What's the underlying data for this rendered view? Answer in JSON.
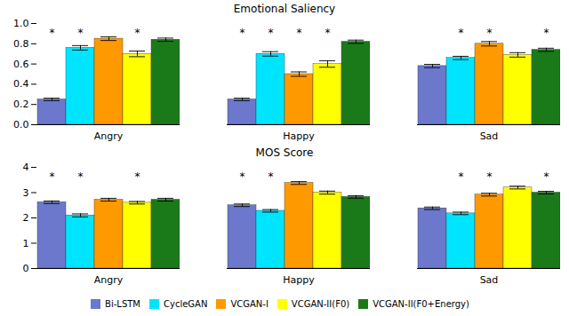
{
  "chart_data": [
    {
      "type": "bar",
      "title": "Emotional Saliency",
      "categories": [
        "Angry",
        "Happy",
        "Sad"
      ],
      "series": [
        {
          "name": "Bi-LSTM",
          "color": "#6B78CC",
          "values": [
            0.25,
            0.25,
            0.58
          ],
          "errors": [
            0.012,
            0.012,
            0.016
          ]
        },
        {
          "name": "CycleGAN",
          "color": "#00E5FF",
          "values": [
            0.76,
            0.7,
            0.66
          ],
          "errors": [
            0.022,
            0.022,
            0.016
          ]
        },
        {
          "name": "VCGAN-I",
          "color": "#FF9900",
          "values": [
            0.85,
            0.5,
            0.8
          ],
          "errors": [
            0.018,
            0.022,
            0.022
          ]
        },
        {
          "name": "VCGAN-II(F0)",
          "color": "#FFFF00",
          "values": [
            0.7,
            0.6,
            0.69
          ],
          "errors": [
            0.028,
            0.032,
            0.022
          ]
        },
        {
          "name": "VCGAN-II(F0+Energy)",
          "color": "#1A7A1A",
          "values": [
            0.84,
            0.82,
            0.74
          ],
          "errors": [
            0.016,
            0.016,
            0.016
          ]
        }
      ],
      "annotations": [
        {
          "category": "Angry",
          "series": "Bi-LSTM",
          "text": "*"
        },
        {
          "category": "Angry",
          "series": "CycleGAN",
          "text": "*"
        },
        {
          "category": "Angry",
          "series": "VCGAN-II(F0)",
          "text": "*"
        },
        {
          "category": "Happy",
          "series": "Bi-LSTM",
          "text": "*"
        },
        {
          "category": "Happy",
          "series": "CycleGAN",
          "text": "*"
        },
        {
          "category": "Happy",
          "series": "VCGAN-I",
          "text": "*"
        },
        {
          "category": "Happy",
          "series": "VCGAN-II(F0)",
          "text": "*"
        },
        {
          "category": "Sad",
          "series": "CycleGAN",
          "text": "*"
        },
        {
          "category": "Sad",
          "series": "VCGAN-I",
          "text": "*"
        },
        {
          "category": "Sad",
          "series": "VCGAN-II(F0+Energy)",
          "text": "*"
        }
      ],
      "ylim": [
        0.0,
        1.0
      ],
      "yticks": [
        {
          "value": 0.0,
          "label": "0.0"
        },
        0.2,
        0.4,
        0.6,
        0.8,
        {
          "value": 1.0,
          "label": "1.0"
        }
      ],
      "grid": false
    },
    {
      "type": "bar",
      "title": "MOS Score",
      "categories": [
        "Angry",
        "Happy",
        "Sad"
      ],
      "series": [
        {
          "name": "Bi-LSTM",
          "color": "#6B78CC",
          "values": [
            2.62,
            2.5,
            2.38
          ],
          "errors": [
            0.05,
            0.05,
            0.05
          ]
        },
        {
          "name": "CycleGAN",
          "color": "#00E5FF",
          "values": [
            2.1,
            2.28,
            2.18
          ],
          "errors": [
            0.06,
            0.05,
            0.05
          ]
        },
        {
          "name": "VCGAN-I",
          "color": "#FF9900",
          "values": [
            2.72,
            3.38,
            2.92
          ],
          "errors": [
            0.055,
            0.055,
            0.055
          ]
        },
        {
          "name": "VCGAN-II(F0)",
          "color": "#FFFF00",
          "values": [
            2.6,
            3.0,
            3.2
          ],
          "errors": [
            0.05,
            0.06,
            0.055
          ]
        },
        {
          "name": "VCGAN-II(F0+Energy)",
          "color": "#1A7A1A",
          "values": [
            2.72,
            2.83,
            3.0
          ],
          "errors": [
            0.055,
            0.05,
            0.05
          ]
        }
      ],
      "annotations": [
        {
          "category": "Angry",
          "series": "Bi-LSTM",
          "text": "*"
        },
        {
          "category": "Angry",
          "series": "CycleGAN",
          "text": "*"
        },
        {
          "category": "Angry",
          "series": "VCGAN-II(F0)",
          "text": "*"
        },
        {
          "category": "Happy",
          "series": "Bi-LSTM",
          "text": "*"
        },
        {
          "category": "Happy",
          "series": "CycleGAN",
          "text": "*"
        },
        {
          "category": "Sad",
          "series": "CycleGAN",
          "text": "*"
        },
        {
          "category": "Sad",
          "series": "VCGAN-I",
          "text": "*"
        },
        {
          "category": "Sad",
          "series": "VCGAN-II(F0+Energy)",
          "text": "*"
        }
      ],
      "ylim": [
        0,
        4
      ],
      "yticks": [
        0,
        1,
        2,
        3,
        4
      ],
      "grid": false,
      "legend": "lower center"
    }
  ]
}
